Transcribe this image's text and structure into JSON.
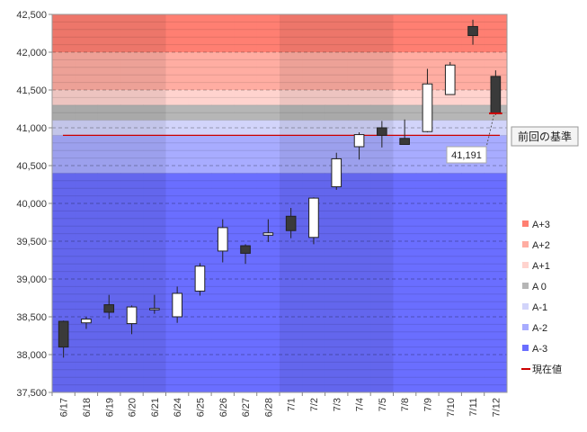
{
  "chart_data": {
    "type": "candlestick",
    "title": "",
    "xlabel": "",
    "ylabel": "",
    "ylim": [
      37500,
      42500
    ],
    "y_ticks": [
      37500,
      38000,
      38500,
      39000,
      39500,
      40000,
      40500,
      41000,
      41500,
      42000,
      42500
    ],
    "y_tick_labels": [
      "37,500",
      "38,000",
      "38,500",
      "39,000",
      "39,500",
      "40,000",
      "40,500",
      "41,000",
      "41,500",
      "42,000",
      "42,500"
    ],
    "grid": true,
    "legend_position": "right",
    "categories": [
      "6/17",
      "6/18",
      "6/19",
      "6/20",
      "6/21",
      "6/24",
      "6/25",
      "6/26",
      "6/27",
      "6/28",
      "7/1",
      "7/2",
      "7/3",
      "7/4",
      "7/5",
      "7/8",
      "7/9",
      "7/10",
      "7/11",
      "7/12"
    ],
    "candles": [
      {
        "open": 38440,
        "high": 38450,
        "low": 37960,
        "close": 38100
      },
      {
        "open": 38420,
        "high": 38500,
        "low": 38340,
        "close": 38470
      },
      {
        "open": 38660,
        "high": 38790,
        "low": 38470,
        "close": 38560
      },
      {
        "open": 38410,
        "high": 38650,
        "low": 38270,
        "close": 38630
      },
      {
        "open": 38600,
        "high": 38790,
        "low": 38540,
        "close": 38610
      },
      {
        "open": 38500,
        "high": 38900,
        "low": 38420,
        "close": 38810
      },
      {
        "open": 38840,
        "high": 39210,
        "low": 38780,
        "close": 39170
      },
      {
        "open": 39370,
        "high": 39790,
        "low": 39220,
        "close": 39680
      },
      {
        "open": 39440,
        "high": 39460,
        "low": 39200,
        "close": 39340
      },
      {
        "open": 39580,
        "high": 39790,
        "low": 39490,
        "close": 39610
      },
      {
        "open": 39830,
        "high": 39940,
        "low": 39540,
        "close": 39640
      },
      {
        "open": 39550,
        "high": 40080,
        "low": 39460,
        "close": 40070
      },
      {
        "open": 40220,
        "high": 40670,
        "low": 40180,
        "close": 40590
      },
      {
        "open": 40750,
        "high": 40940,
        "low": 40580,
        "close": 40910
      },
      {
        "open": 41000,
        "high": 41090,
        "low": 40740,
        "close": 40900
      },
      {
        "open": 40860,
        "high": 41110,
        "low": 40780,
        "close": 40780
      },
      {
        "open": 40950,
        "high": 41780,
        "low": 40940,
        "close": 41580
      },
      {
        "open": 41440,
        "high": 41870,
        "low": 41440,
        "close": 41830
      },
      {
        "open": 42340,
        "high": 42430,
        "low": 42100,
        "close": 42220
      },
      {
        "open": 41680,
        "high": 41760,
        "low": 41170,
        "close": 41191
      }
    ],
    "bands": [
      {
        "name": "A+3",
        "from": 42000,
        "to": 42500,
        "color": "#ff7f72"
      },
      {
        "name": "A+2",
        "from": 41500,
        "to": 42000,
        "color": "#ffada2"
      },
      {
        "name": "A+1",
        "from": 41300,
        "to": 41500,
        "color": "#ffd3ce"
      },
      {
        "name": "A 0",
        "from": 41100,
        "to": 41300,
        "color": "#b6b6b6"
      },
      {
        "name": "A-1",
        "from": 40900,
        "to": 41100,
        "color": "#d2d4fa"
      },
      {
        "name": "A-2",
        "from": 40400,
        "to": 40900,
        "color": "#a8acff"
      },
      {
        "name": "A-3",
        "from": 37500,
        "to": 40400,
        "color": "#6a6eff"
      }
    ],
    "shade_groups": [
      [
        0,
        4
      ],
      [
        10,
        14
      ]
    ],
    "reference_line": {
      "label": "前回の基準",
      "value": 40900,
      "color": "#cc0000"
    },
    "current_value": {
      "value": 41191,
      "label": "41,191",
      "legend": "現在値",
      "color": "#cc0000"
    },
    "legend": [
      "A+3",
      "A+2",
      "A+1",
      "A 0",
      "A-1",
      "A-2",
      "A-3",
      "現在値"
    ]
  }
}
